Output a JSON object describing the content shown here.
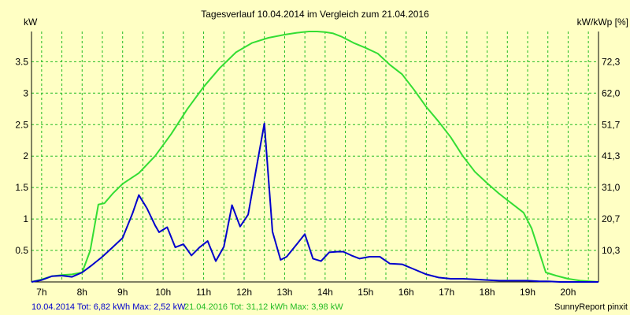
{
  "chart_data": {
    "type": "line",
    "title": "Tagesverlauf 10.04.2014 im Vergleich zum 21.04.2016",
    "ylabel_left": "kW",
    "ylabel_right": "kW/kWp [%]",
    "grid": true,
    "ylim": [
      0,
      3.98
    ],
    "y_ticks": [
      "0.5",
      "1",
      "1.5",
      "2",
      "2.5",
      "3",
      "3.5"
    ],
    "y_tick_values": [
      0.5,
      1,
      1.5,
      2,
      2.5,
      3,
      3.5
    ],
    "y2_ticks": [
      "10,3",
      "20,7",
      "31,0",
      "41,3",
      "51,7",
      "62,0",
      "72,3"
    ],
    "xlim": [
      6.75,
      20.75
    ],
    "x_ticks": [
      "7h",
      "8h",
      "9h",
      "10h",
      "11h",
      "12h",
      "13h",
      "14h",
      "15h",
      "16h",
      "17h",
      "18h",
      "19h",
      "20h"
    ],
    "x_tick_values": [
      7,
      8,
      9,
      10,
      11,
      12,
      13,
      14,
      15,
      16,
      17,
      18,
      19,
      20
    ],
    "series": [
      {
        "name": "10.04.2014",
        "color": "#0000cc",
        "x": [
          6.75,
          7.0,
          7.25,
          7.5,
          7.75,
          8.0,
          8.25,
          8.5,
          8.75,
          9.0,
          9.25,
          9.4,
          9.6,
          9.8,
          9.9,
          10.1,
          10.3,
          10.5,
          10.7,
          10.9,
          11.1,
          11.3,
          11.5,
          11.7,
          11.9,
          12.1,
          12.3,
          12.5,
          12.7,
          12.9,
          13.05,
          13.3,
          13.5,
          13.7,
          13.9,
          14.1,
          14.3,
          14.45,
          14.65,
          14.85,
          15.1,
          15.35,
          15.6,
          15.9,
          16.2,
          16.5,
          16.8,
          17.1,
          17.4,
          17.7,
          18.0,
          18.3,
          18.6,
          19.0,
          19.3,
          19.5,
          19.8,
          20.1,
          20.4,
          20.75
        ],
        "y": [
          0.0,
          0.03,
          0.09,
          0.1,
          0.08,
          0.15,
          0.27,
          0.4,
          0.55,
          0.7,
          1.1,
          1.38,
          1.17,
          0.9,
          0.79,
          0.87,
          0.55,
          0.6,
          0.42,
          0.55,
          0.65,
          0.33,
          0.56,
          1.22,
          0.88,
          1.07,
          1.8,
          2.52,
          0.8,
          0.35,
          0.4,
          0.6,
          0.76,
          0.37,
          0.33,
          0.47,
          0.48,
          0.48,
          0.42,
          0.37,
          0.4,
          0.4,
          0.29,
          0.28,
          0.2,
          0.12,
          0.07,
          0.05,
          0.05,
          0.04,
          0.03,
          0.02,
          0.02,
          0.02,
          0.01,
          0.01,
          0.0,
          0.0,
          0.0,
          0.0
        ]
      },
      {
        "name": "21.04.2016",
        "color": "#33dd33",
        "x": [
          6.75,
          7.0,
          7.25,
          7.5,
          7.75,
          8.0,
          8.2,
          8.4,
          8.55,
          8.75,
          9.0,
          9.4,
          9.8,
          10.2,
          10.6,
          11.0,
          11.4,
          11.8,
          12.2,
          12.6,
          13.0,
          13.3,
          13.6,
          13.8,
          14.0,
          14.2,
          14.4,
          14.7,
          15.0,
          15.3,
          15.6,
          15.9,
          16.2,
          16.5,
          16.8,
          17.1,
          17.4,
          17.7,
          18.0,
          18.3,
          18.6,
          18.9,
          19.1,
          19.25,
          19.45,
          19.7,
          20.0,
          20.3,
          20.75
        ],
        "y": [
          0.0,
          0.04,
          0.09,
          0.11,
          0.12,
          0.15,
          0.5,
          1.23,
          1.25,
          1.4,
          1.56,
          1.73,
          2.0,
          2.35,
          2.75,
          3.1,
          3.4,
          3.65,
          3.8,
          3.88,
          3.93,
          3.96,
          3.98,
          3.98,
          3.97,
          3.95,
          3.9,
          3.8,
          3.72,
          3.63,
          3.45,
          3.3,
          3.05,
          2.78,
          2.55,
          2.3,
          2.0,
          1.75,
          1.57,
          1.4,
          1.25,
          1.1,
          0.85,
          0.55,
          0.15,
          0.1,
          0.05,
          0.02,
          0.0
        ]
      }
    ]
  },
  "footer": {
    "series1_text": "10.04.2014 Tot: 6,82 kWh Max: 2,52 kW",
    "series2_text": "21.04.2016 Tot: 31,12 kWh Max: 3,98 kW",
    "credit": "SunnyReport pinxit"
  }
}
